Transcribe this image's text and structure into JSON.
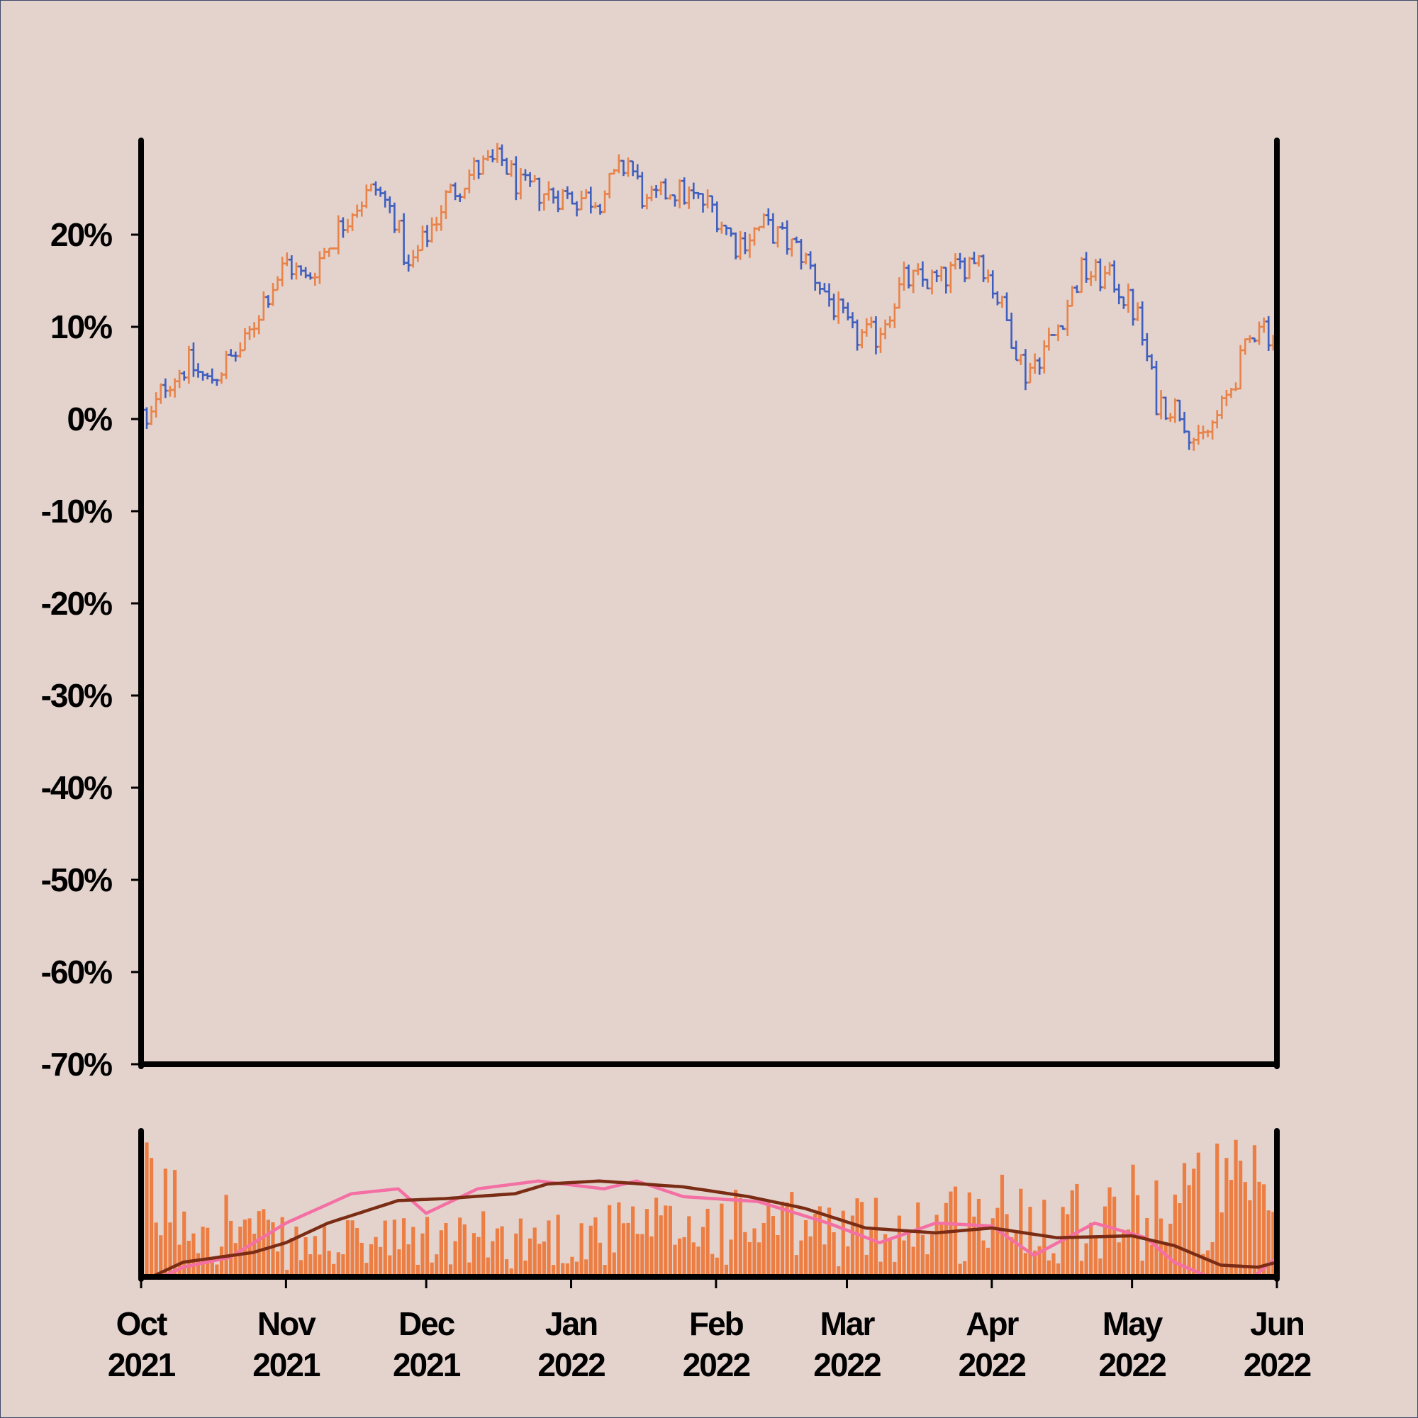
{
  "colors": {
    "background": "#e4d3cd",
    "up": "#e8834a",
    "down": "#3f5fbf",
    "volume": "#ec7e43",
    "ma_fast": "#f46fa3",
    "ma_slow": "#7a2c14",
    "axis": "#000000"
  },
  "chart_data": {
    "type": "ohlc",
    "x_type": "date",
    "date_range": [
      "2021-10-01",
      "2022-06-01"
    ],
    "ylim": [
      -70,
      30
    ],
    "y_unit": "%",
    "y_ticks": [
      {
        "value": 20,
        "label": "20%"
      },
      {
        "value": 10,
        "label": "10%"
      },
      {
        "value": 0,
        "label": "0%"
      },
      {
        "value": -10,
        "label": "-10%"
      },
      {
        "value": -20,
        "label": "-20%"
      },
      {
        "value": -30,
        "label": "-30%"
      },
      {
        "value": -40,
        "label": "-40%"
      },
      {
        "value": -50,
        "label": "-50%"
      },
      {
        "value": -60,
        "label": "-60%"
      },
      {
        "value": -70,
        "label": "-70%"
      }
    ],
    "x_ticks": [
      {
        "date": "2021-10-01",
        "month": "Oct",
        "year": "2021"
      },
      {
        "date": "2021-11-01",
        "month": "Nov",
        "year": "2021"
      },
      {
        "date": "2021-12-01",
        "month": "Dec",
        "year": "2021"
      },
      {
        "date": "2022-01-01",
        "month": "Jan",
        "year": "2022"
      },
      {
        "date": "2022-02-01",
        "month": "Feb",
        "year": "2022"
      },
      {
        "date": "2022-03-01",
        "month": "Mar",
        "year": "2022"
      },
      {
        "date": "2022-04-01",
        "month": "Apr",
        "year": "2022"
      },
      {
        "date": "2022-05-01",
        "month": "May",
        "year": "2022"
      },
      {
        "date": "2022-06-01",
        "month": "Jun",
        "year": "2022"
      }
    ],
    "price_path": [
      [
        "2021-10-01",
        -1
      ],
      [
        "2021-10-05",
        4
      ],
      [
        "2021-10-10",
        6
      ],
      [
        "2021-10-14",
        4
      ],
      [
        "2021-10-18",
        6
      ],
      [
        "2021-10-22",
        8
      ],
      [
        "2021-10-26",
        13
      ],
      [
        "2021-10-31",
        17
      ],
      [
        "2021-11-04",
        15
      ],
      [
        "2021-11-09",
        19
      ],
      [
        "2021-11-14",
        23
      ],
      [
        "2021-11-19",
        25
      ],
      [
        "2021-11-23",
        22
      ],
      [
        "2021-11-26",
        16
      ],
      [
        "2021-11-30",
        20
      ],
      [
        "2021-12-04",
        24
      ],
      [
        "2021-12-10",
        27
      ],
      [
        "2021-12-16",
        28
      ],
      [
        "2021-12-20",
        25
      ],
      [
        "2022-01-01",
        24
      ],
      [
        "2022-01-06",
        24
      ],
      [
        "2022-01-12",
        28
      ],
      [
        "2022-01-16",
        23
      ],
      [
        "2022-01-21",
        25
      ],
      [
        "2022-01-30",
        23
      ],
      [
        "2022-02-04",
        19
      ],
      [
        "2022-02-10",
        21
      ],
      [
        "2022-02-18",
        18
      ],
      [
        "2022-02-24",
        13
      ],
      [
        "2022-03-01",
        9
      ],
      [
        "2022-03-06",
        9
      ],
      [
        "2022-03-12",
        15
      ],
      [
        "2022-03-20",
        15
      ],
      [
        "2022-03-28",
        18
      ],
      [
        "2022-04-02",
        12
      ],
      [
        "2022-04-07",
        5
      ],
      [
        "2022-04-13",
        9
      ],
      [
        "2022-04-19",
        16
      ],
      [
        "2022-04-26",
        15
      ],
      [
        "2022-05-01",
        11
      ],
      [
        "2022-05-05",
        2
      ],
      [
        "2022-05-10",
        1
      ],
      [
        "2022-05-14",
        -3
      ],
      [
        "2022-05-19",
        1
      ],
      [
        "2022-05-23",
        6
      ],
      [
        "2022-05-27",
        11
      ],
      [
        "2022-06-01",
        7
      ]
    ],
    "volume_profile": [
      [
        "2021-10-01",
        0.75
      ],
      [
        "2021-10-20",
        0.5
      ],
      [
        "2021-11-01",
        0.3
      ],
      [
        "2021-12-01",
        0.35
      ],
      [
        "2022-01-01",
        0.4
      ],
      [
        "2022-02-01",
        0.5
      ],
      [
        "2022-03-01",
        0.45
      ],
      [
        "2022-04-01",
        0.6
      ],
      [
        "2022-05-01",
        0.65
      ],
      [
        "2022-05-20",
        0.8
      ],
      [
        "2022-06-01",
        0.7
      ]
    ],
    "moving_average_fast": [
      [
        "2021-10-01",
        -10
      ],
      [
        "2021-10-10",
        10
      ],
      [
        "2021-10-20",
        20
      ],
      [
        "2021-11-01",
        55
      ],
      [
        "2021-11-15",
        85
      ],
      [
        "2021-11-25",
        90
      ],
      [
        "2021-12-01",
        65
      ],
      [
        "2021-12-12",
        90
      ],
      [
        "2021-12-25",
        98
      ],
      [
        "2022-01-08",
        90
      ],
      [
        "2022-01-15",
        98
      ],
      [
        "2022-01-25",
        82
      ],
      [
        "2022-02-10",
        77
      ],
      [
        "2022-02-25",
        55
      ],
      [
        "2022-03-08",
        35
      ],
      [
        "2022-03-20",
        55
      ],
      [
        "2022-04-01",
        52
      ],
      [
        "2022-04-10",
        22
      ],
      [
        "2022-04-23",
        55
      ],
      [
        "2022-05-04",
        40
      ],
      [
        "2022-05-10",
        15
      ],
      [
        "2022-05-20",
        -5
      ],
      [
        "2022-05-27",
        0
      ],
      [
        "2022-06-01",
        20
      ]
    ],
    "moving_average_slow": [
      [
        "2021-10-01",
        -5
      ],
      [
        "2021-10-10",
        15
      ],
      [
        "2021-10-25",
        25
      ],
      [
        "2021-11-01",
        35
      ],
      [
        "2021-11-10",
        55
      ],
      [
        "2021-11-25",
        78
      ],
      [
        "2021-12-05",
        80
      ],
      [
        "2021-12-20",
        85
      ],
      [
        "2021-12-27",
        95
      ],
      [
        "2022-01-07",
        98
      ],
      [
        "2022-01-25",
        92
      ],
      [
        "2022-02-08",
        82
      ],
      [
        "2022-02-20",
        70
      ],
      [
        "2022-03-05",
        50
      ],
      [
        "2022-03-20",
        45
      ],
      [
        "2022-04-01",
        50
      ],
      [
        "2022-04-15",
        40
      ],
      [
        "2022-05-01",
        42
      ],
      [
        "2022-05-10",
        32
      ],
      [
        "2022-05-20",
        12
      ],
      [
        "2022-05-28",
        10
      ],
      [
        "2022-06-01",
        15
      ]
    ]
  }
}
